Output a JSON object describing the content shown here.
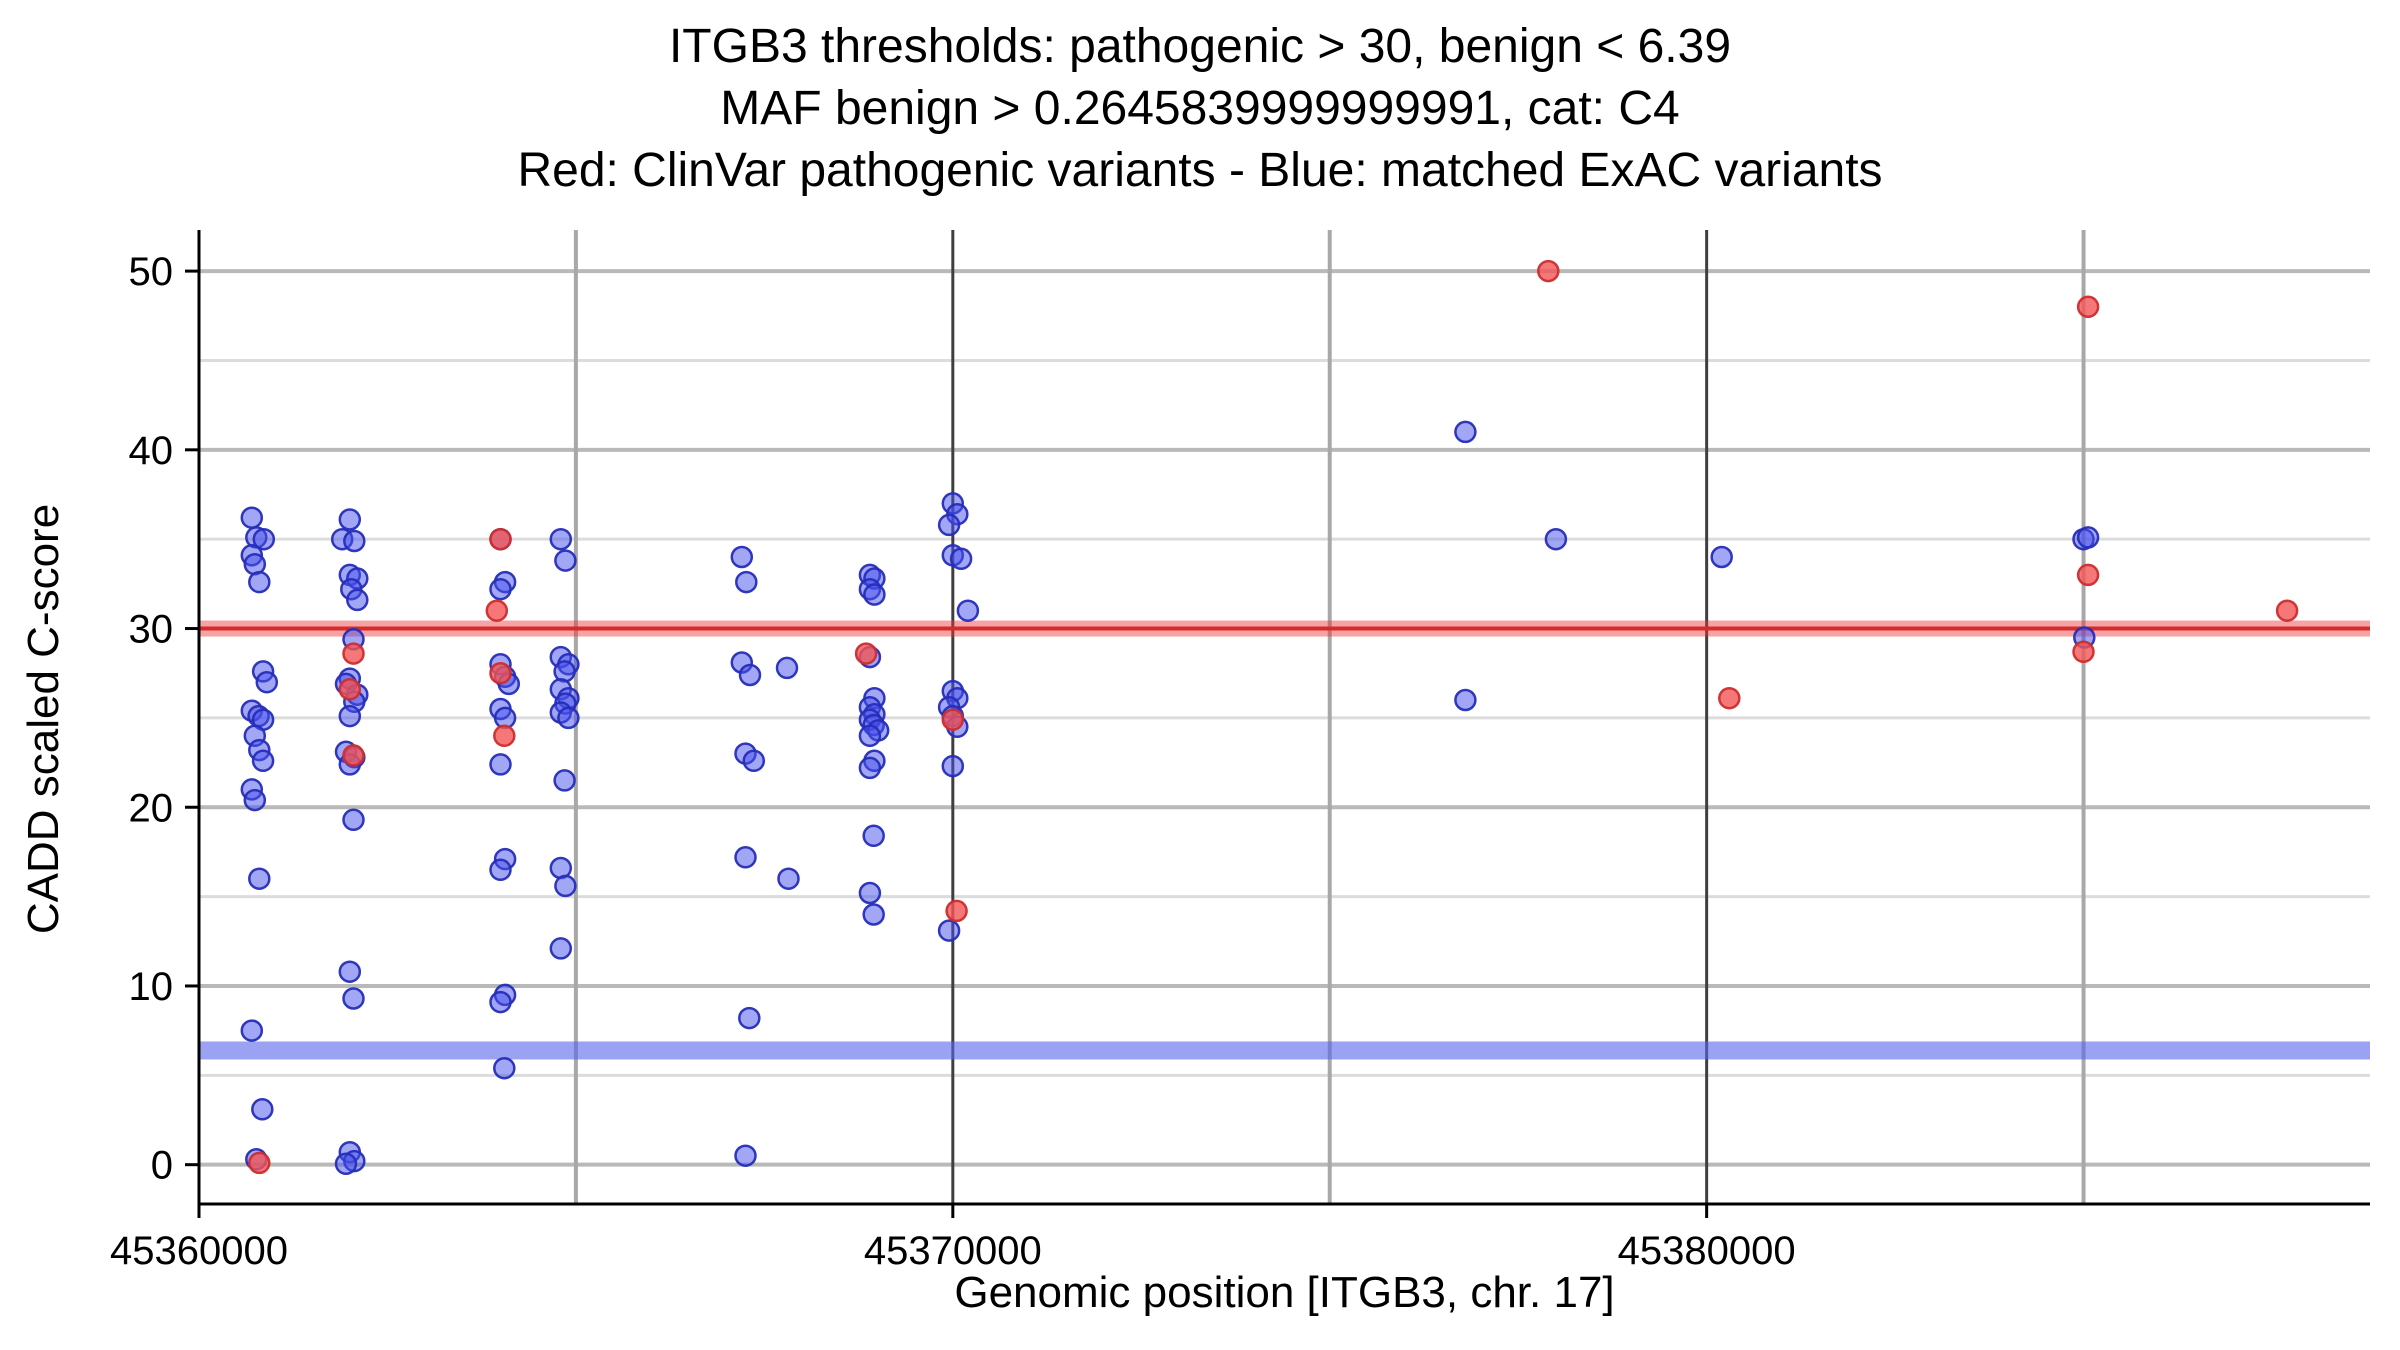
{
  "chart_data": {
    "type": "scatter",
    "title_lines": [
      "ITGB3 thresholds: pathogenic > 30, benign < 6.39",
      "MAF benign > 0.2645839999999991, cat: C4",
      "Red: ClinVar pathogenic variants - Blue: matched ExAC variants"
    ],
    "xlabel": "Genomic position [ITGB3, chr. 17]",
    "ylabel": "CADD scaled C-score",
    "x_range": [
      45360000,
      45388800
    ],
    "y_range": [
      -2.2,
      52.3
    ],
    "x_ticks": [
      {
        "value": 45360000,
        "label": "45360000"
      },
      {
        "value": 45370000,
        "label": "45370000"
      },
      {
        "value": 45380000,
        "label": "45380000"
      }
    ],
    "y_ticks": [
      {
        "value": 0,
        "label": "0"
      },
      {
        "value": 10,
        "label": "10"
      },
      {
        "value": 20,
        "label": "20"
      },
      {
        "value": 30,
        "label": "30"
      },
      {
        "value": 40,
        "label": "40"
      },
      {
        "value": 50,
        "label": "50"
      }
    ],
    "x_minor_gridlines": [
      45365000,
      45375000,
      45385000
    ],
    "y_minor_gridlines": [
      5,
      15,
      25,
      35,
      45
    ],
    "grid": true,
    "legend_position": "none",
    "colors": {
      "grid_major_h": "#b9b9b9",
      "grid_minor_h": "#dcdcdc",
      "grid_major_v": "#3f3f3f",
      "grid_minor_v": "#a8a8a8",
      "axis": "#000000",
      "pathogenic_band_fill": "rgba(237,50,55,0.45)",
      "pathogenic_band_line": "#d62b2b",
      "benign_band_fill": "rgba(90,100,235,0.60)",
      "blue_point_fill": "rgba(70,80,235,0.50)",
      "blue_point_stroke": "rgba(38,45,185,0.95)",
      "red_point_fill": "rgba(243,85,85,0.80)",
      "red_point_stroke": "rgba(205,45,45,0.95)"
    },
    "thresholds": {
      "pathogenic": {
        "value": 30,
        "label": "pathogenic > 30"
      },
      "benign": {
        "value": 6.39,
        "label": "benign < 6.39"
      },
      "maf_benign": "0.2645839999999991",
      "category": "C4"
    },
    "series": [
      {
        "name": "matched ExAC variants",
        "color": "blue",
        "points": [
          [
            45360700,
            36.2
          ],
          [
            45360760,
            35.1
          ],
          [
            45360860,
            35.0
          ],
          [
            45360700,
            34.1
          ],
          [
            45360740,
            33.6
          ],
          [
            45360800,
            32.6
          ],
          [
            45360850,
            27.6
          ],
          [
            45360900,
            27.0
          ],
          [
            45360700,
            25.4
          ],
          [
            45360790,
            25.1
          ],
          [
            45360850,
            24.9
          ],
          [
            45360740,
            24.0
          ],
          [
            45360800,
            23.2
          ],
          [
            45360850,
            22.6
          ],
          [
            45360700,
            21.0
          ],
          [
            45360740,
            20.4
          ],
          [
            45360800,
            16.0
          ],
          [
            45360700,
            7.5
          ],
          [
            45360840,
            3.1
          ],
          [
            45360760,
            0.3
          ],
          [
            45362000,
            36.1
          ],
          [
            45361900,
            35.0
          ],
          [
            45362060,
            34.9
          ],
          [
            45362000,
            33.0
          ],
          [
            45362100,
            32.8
          ],
          [
            45362020,
            32.2
          ],
          [
            45362100,
            31.6
          ],
          [
            45362050,
            29.4
          ],
          [
            45362000,
            27.2
          ],
          [
            45361950,
            26.9
          ],
          [
            45362100,
            26.3
          ],
          [
            45362060,
            25.9
          ],
          [
            45362000,
            25.1
          ],
          [
            45361950,
            23.1
          ],
          [
            45362060,
            22.8
          ],
          [
            45362000,
            22.4
          ],
          [
            45362050,
            19.3
          ],
          [
            45362000,
            10.8
          ],
          [
            45362050,
            9.3
          ],
          [
            45362000,
            0.7
          ],
          [
            45362060,
            0.2
          ],
          [
            45361950,
            0.05
          ],
          [
            45364000,
            35.0
          ],
          [
            45364060,
            32.6
          ],
          [
            45364000,
            32.2
          ],
          [
            45364000,
            28.0
          ],
          [
            45364060,
            27.3
          ],
          [
            45364110,
            26.9
          ],
          [
            45364000,
            25.5
          ],
          [
            45364060,
            25.0
          ],
          [
            45364000,
            22.4
          ],
          [
            45364060,
            17.1
          ],
          [
            45364000,
            16.5
          ],
          [
            45364060,
            9.5
          ],
          [
            45364000,
            9.1
          ],
          [
            45364050,
            5.4
          ],
          [
            45364800,
            35.0
          ],
          [
            45364860,
            33.8
          ],
          [
            45364800,
            28.4
          ],
          [
            45364900,
            28.0
          ],
          [
            45364850,
            27.6
          ],
          [
            45364800,
            26.6
          ],
          [
            45364900,
            26.1
          ],
          [
            45364860,
            25.8
          ],
          [
            45364800,
            25.3
          ],
          [
            45364900,
            25.0
          ],
          [
            45364850,
            21.5
          ],
          [
            45364800,
            16.6
          ],
          [
            45364860,
            15.6
          ],
          [
            45364800,
            12.1
          ],
          [
            45367200,
            34.0
          ],
          [
            45367260,
            32.6
          ],
          [
            45367200,
            28.1
          ],
          [
            45367310,
            27.4
          ],
          [
            45367250,
            23.0
          ],
          [
            45367360,
            22.6
          ],
          [
            45367250,
            17.2
          ],
          [
            45367300,
            8.2
          ],
          [
            45367250,
            0.5
          ],
          [
            45367800,
            27.8
          ],
          [
            45367820,
            16.0
          ],
          [
            45368900,
            33.0
          ],
          [
            45368960,
            32.8
          ],
          [
            45368900,
            32.2
          ],
          [
            45368960,
            31.9
          ],
          [
            45368900,
            28.4
          ],
          [
            45368960,
            26.1
          ],
          [
            45368900,
            25.6
          ],
          [
            45368960,
            25.2
          ],
          [
            45368900,
            24.9
          ],
          [
            45368950,
            24.6
          ],
          [
            45369010,
            24.3
          ],
          [
            45368900,
            24.0
          ],
          [
            45368960,
            22.6
          ],
          [
            45368900,
            22.2
          ],
          [
            45368950,
            18.4
          ],
          [
            45368900,
            15.2
          ],
          [
            45368950,
            14.0
          ],
          [
            45370000,
            37.0
          ],
          [
            45370060,
            36.4
          ],
          [
            45369950,
            35.8
          ],
          [
            45370000,
            34.1
          ],
          [
            45370110,
            33.9
          ],
          [
            45370200,
            31.0
          ],
          [
            45370000,
            26.5
          ],
          [
            45370060,
            26.1
          ],
          [
            45369950,
            25.6
          ],
          [
            45370000,
            25.1
          ],
          [
            45370060,
            24.5
          ],
          [
            45370000,
            22.3
          ],
          [
            45369950,
            13.1
          ],
          [
            45376800,
            41.0
          ],
          [
            45376800,
            26.0
          ],
          [
            45378000,
            35.0
          ],
          [
            45380200,
            34.0
          ],
          [
            45385000,
            35.0
          ],
          [
            45385060,
            35.1
          ],
          [
            45385010,
            29.5
          ]
        ]
      },
      {
        "name": "ClinVar pathogenic variants",
        "color": "red",
        "points": [
          [
            45360800,
            0.1
          ],
          [
            45362050,
            28.6
          ],
          [
            45362000,
            26.6
          ],
          [
            45362050,
            22.9
          ],
          [
            45364000,
            35.0
          ],
          [
            45363950,
            31.0
          ],
          [
            45364000,
            27.5
          ],
          [
            45364050,
            24.0
          ],
          [
            45368850,
            28.6
          ],
          [
            45370000,
            24.9
          ],
          [
            45370050,
            14.2
          ],
          [
            45377900,
            50.0
          ],
          [
            45380300,
            26.1
          ],
          [
            45385060,
            48.0
          ],
          [
            45385060,
            33.0
          ],
          [
            45385000,
            28.7
          ],
          [
            45387700,
            31.0
          ]
        ]
      }
    ]
  }
}
